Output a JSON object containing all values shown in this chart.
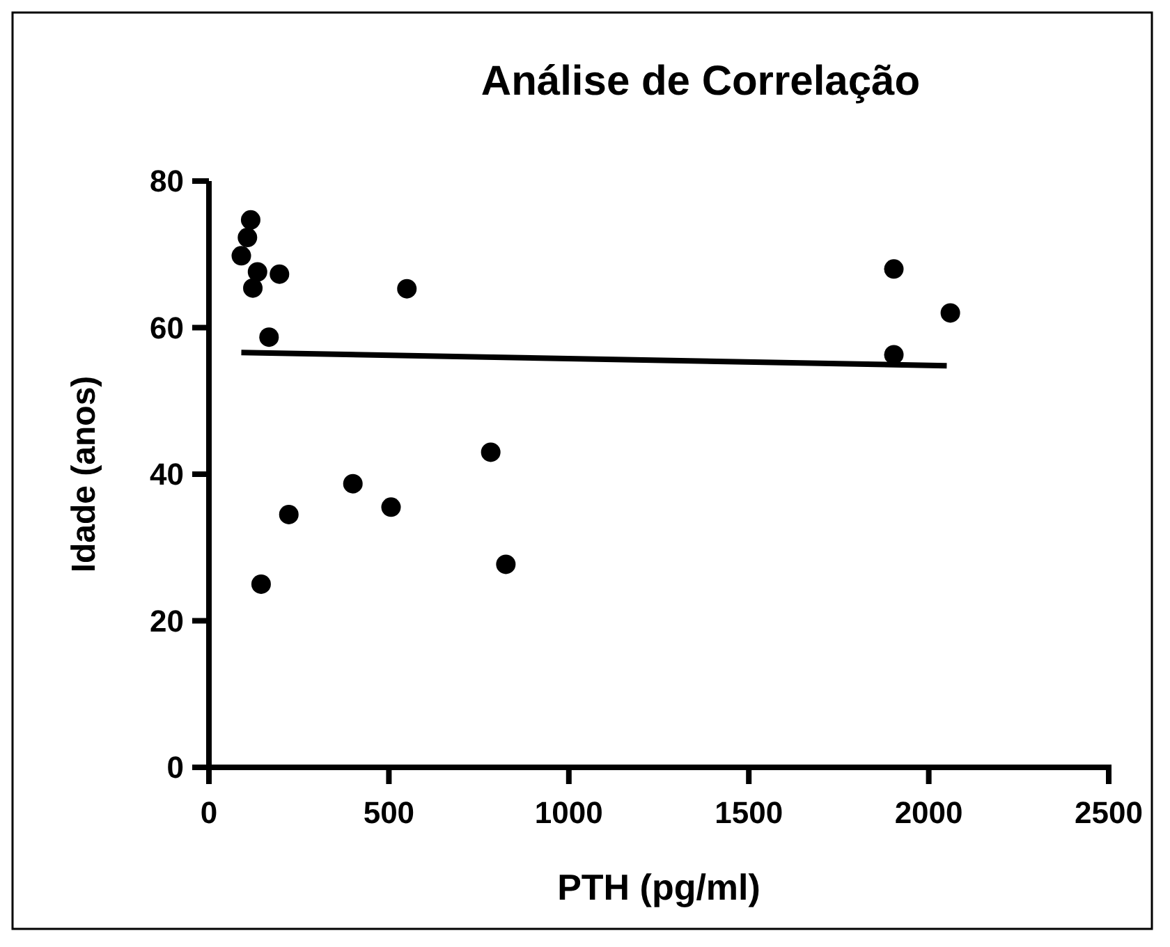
{
  "chart_data": {
    "type": "scatter",
    "title": "Análise de Correlação",
    "xlabel": "PTH (pg/ml)",
    "ylabel": "Idade (anos)",
    "xlim": [
      0,
      2500
    ],
    "xticks": [
      0,
      500,
      1000,
      1500,
      2000,
      2500
    ],
    "ylim": [
      0,
      80
    ],
    "yticks": [
      0,
      20,
      40,
      60,
      80
    ],
    "grid": false,
    "marker": "circle",
    "series": [
      {
        "color": "#000000",
        "x": [
          116,
          107,
          90,
          135,
          196,
          122,
          550,
          167,
          222,
          400,
          506,
          783,
          825,
          145,
          1903,
          1903,
          2060
        ],
        "values": [
          74.7,
          72.3,
          69.8,
          67.6,
          67.3,
          65.4,
          65.3,
          58.7,
          34.5,
          38.7,
          35.5,
          43,
          27.7,
          25,
          68,
          56.3,
          62
        ]
      },
      {
        "type": "line",
        "color": "#000000",
        "line_style": "solid",
        "marker": "none",
        "x": [
          90,
          2050
        ],
        "values": [
          56.6,
          54.8
        ]
      }
    ]
  }
}
